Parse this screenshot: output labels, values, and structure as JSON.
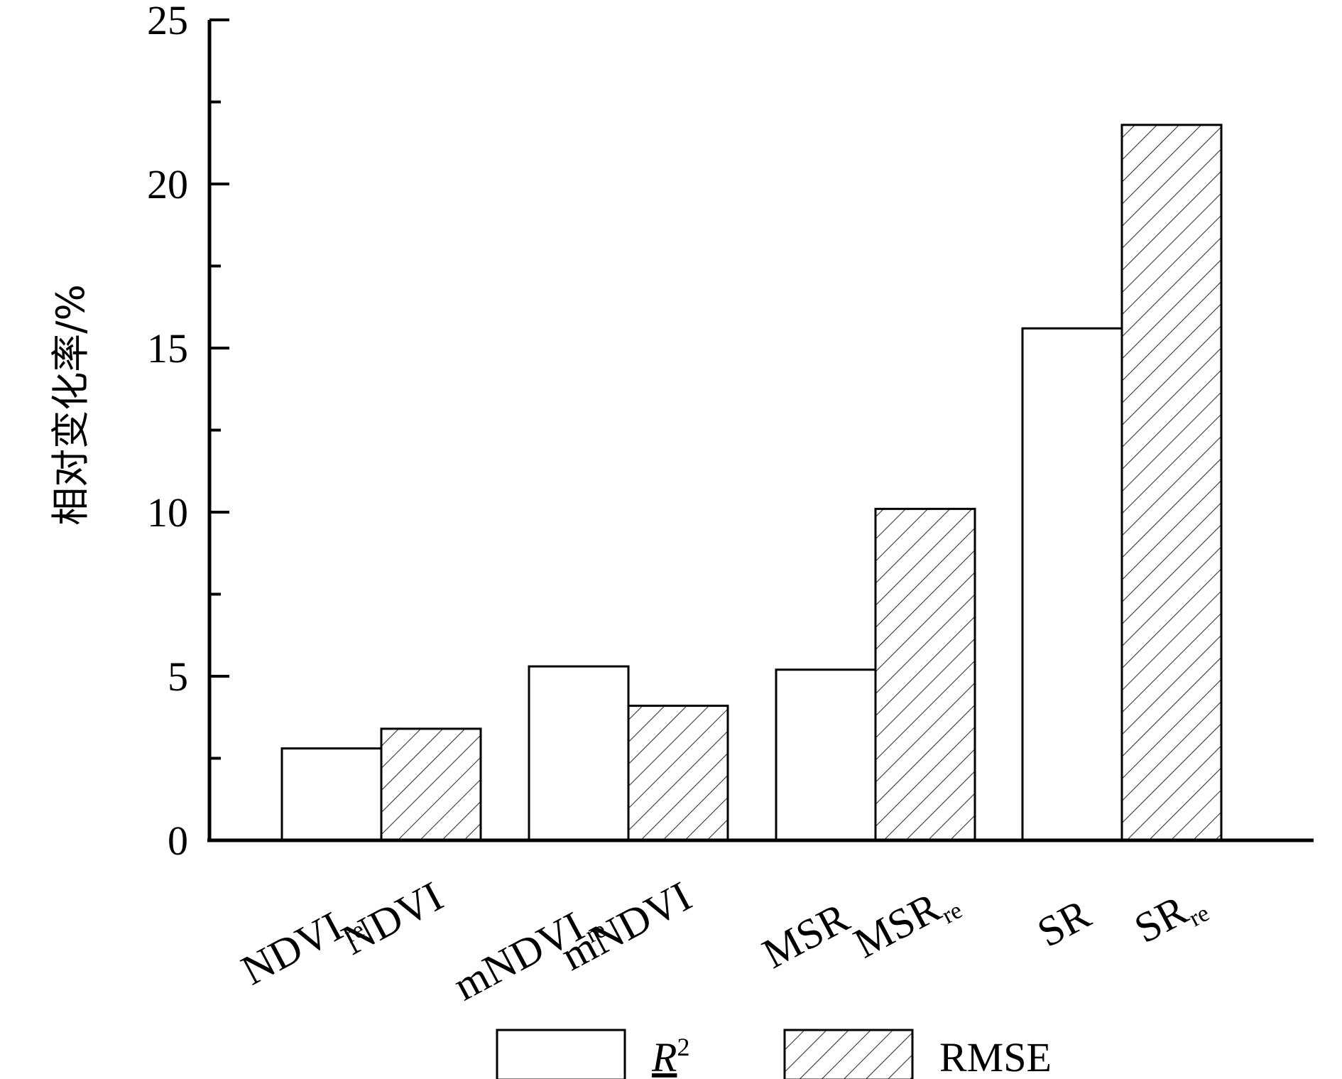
{
  "chart_data": {
    "type": "bar",
    "ylabel": "相对变化率/%",
    "xlabel": "",
    "ylim": [
      0,
      25
    ],
    "yticks": [
      0,
      5,
      10,
      15,
      20,
      25
    ],
    "grid": false,
    "legend_position": "bottom",
    "groups": [
      {
        "bars": [
          {
            "series": "R2",
            "label": "NDVI",
            "sub": "re",
            "value": 2.8
          },
          {
            "series": "RMSE",
            "label": "NDVI",
            "sub": "",
            "value": 3.4
          }
        ]
      },
      {
        "bars": [
          {
            "series": "R2",
            "label": "mNDVI",
            "sub": "re",
            "value": 5.3
          },
          {
            "series": "RMSE",
            "label": "mNDVI",
            "sub": "",
            "value": 4.1
          }
        ]
      },
      {
        "bars": [
          {
            "series": "R2",
            "label": "MSR",
            "sub": "",
            "value": 5.2
          },
          {
            "series": "RMSE",
            "label": "MSR",
            "sub": "re",
            "value": 10.1
          }
        ]
      },
      {
        "bars": [
          {
            "series": "R2",
            "label": "SR",
            "sub": "",
            "value": 15.6
          },
          {
            "series": "RMSE",
            "label": "SR",
            "sub": "re",
            "value": 21.8
          }
        ]
      }
    ],
    "series": [
      {
        "name": "R2",
        "pattern": "none",
        "fill": "#ffffff"
      },
      {
        "name": "RMSE",
        "pattern": "hatch",
        "fill": "#ffffff"
      }
    ],
    "legend": [
      {
        "series": "R2",
        "label": "R",
        "sup": "2"
      },
      {
        "series": "RMSE",
        "label": "RMSE",
        "sup": ""
      }
    ]
  }
}
